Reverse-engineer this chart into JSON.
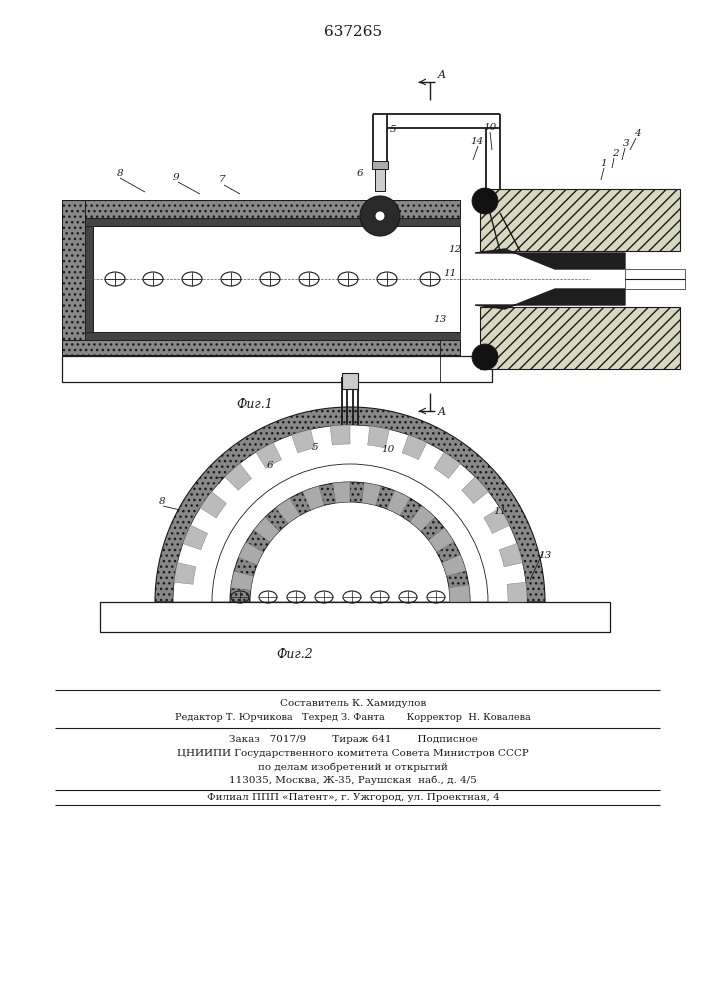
{
  "patent_number": "637265",
  "fig1_caption": "Фиг.1",
  "fig2_caption": "Фиг.2",
  "line_color": "#1a1a1a",
  "gray_dark": "#555555",
  "gray_med": "#888888",
  "gray_light": "#bbbbbb",
  "hatch_dark": "#444444",
  "footer_lines": [
    "Составитель К. Хамидулов",
    "Редактор Т. Юрчикова   Техред З. Фанта       Корректор  Н. Ковалева",
    "Заказ   7017/9        Тираж 641        Подписное",
    "ЦНИИПИ Государственного комитета Совета Министров СССР",
    "по делам изобретений и открытий",
    "113035, Москва, Ж-35, Раушская  наб., д. 4/5",
    "Филиал ППП «Патент», г. Ужгород, ул. Проектная, 4"
  ]
}
